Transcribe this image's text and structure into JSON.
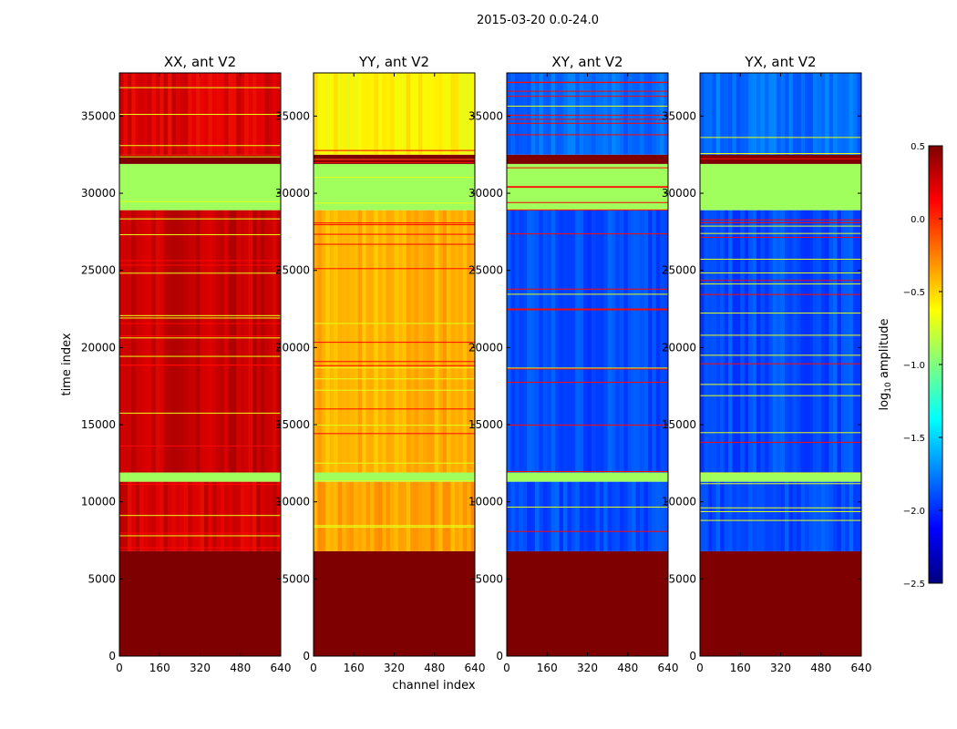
{
  "suptitle": "2015-03-20 0.0-24.0",
  "xlabel": "channel index",
  "ylabel": "time index",
  "x_ticks": [
    0,
    160,
    320,
    480,
    640
  ],
  "y_ticks": [
    0,
    5000,
    10000,
    15000,
    20000,
    25000,
    30000,
    35000
  ],
  "colorbar": {
    "label_prefix": "log",
    "label_sub": "10",
    "label_suffix": " amplitude",
    "ticks": [
      "0.5",
      "0.0",
      "−0.5",
      "−1.0",
      "−1.5",
      "−2.0",
      "−2.5"
    ],
    "tick_values": [
      0.5,
      0.0,
      -0.5,
      -1.0,
      -1.5,
      -2.0,
      -2.5
    ],
    "range": [
      -2.5,
      0.5
    ],
    "colormap": "jet",
    "stops": [
      "#00007f",
      "#0000ff",
      "#007fff",
      "#00ffff",
      "#7fff7f",
      "#ffff00",
      "#ff7f00",
      "#ff0000",
      "#7f0000"
    ]
  },
  "chart_data": [
    {
      "type": "heatmap",
      "title": "XX, ant V2",
      "xlim": [
        0,
        640
      ],
      "ylim": [
        0,
        37800
      ],
      "base_log_amplitude": 0.22,
      "flagged_row_value": -0.9,
      "bands": [
        {
          "y0": 0,
          "y1": 6800,
          "value": 0.5
        },
        {
          "y0": 6800,
          "y1": 11300,
          "value": 0.25
        },
        {
          "y0": 11300,
          "y1": 11900,
          "value": -0.9
        },
        {
          "y0": 11900,
          "y1": 28900,
          "value": 0.28
        },
        {
          "y0": 28900,
          "y1": 31900,
          "value": -0.9
        },
        {
          "y0": 31900,
          "y1": 32500,
          "value": 0.5
        },
        {
          "y0": 32500,
          "y1": 37800,
          "value": 0.22
        }
      ]
    },
    {
      "type": "heatmap",
      "title": "YY, ant V2",
      "xlim": [
        0,
        640
      ],
      "ylim": [
        0,
        37800
      ],
      "base_log_amplitude": -0.4,
      "flagged_row_value": -0.9,
      "bands": [
        {
          "y0": 0,
          "y1": 6800,
          "value": 0.5
        },
        {
          "y0": 6800,
          "y1": 11300,
          "value": -0.35
        },
        {
          "y0": 11300,
          "y1": 11900,
          "value": -0.9
        },
        {
          "y0": 11900,
          "y1": 28900,
          "value": -0.4
        },
        {
          "y0": 28900,
          "y1": 31900,
          "value": -0.9
        },
        {
          "y0": 31900,
          "y1": 32500,
          "value": 0.5
        },
        {
          "y0": 32500,
          "y1": 37800,
          "value": -0.6
        }
      ]
    },
    {
      "type": "heatmap",
      "title": "XY, ant V2",
      "xlim": [
        0,
        640
      ],
      "ylim": [
        0,
        37800
      ],
      "base_log_amplitude": -1.9,
      "flagged_row_value": -0.9,
      "bands": [
        {
          "y0": 0,
          "y1": 6800,
          "value": 0.5
        },
        {
          "y0": 6800,
          "y1": 11300,
          "value": -1.9
        },
        {
          "y0": 11300,
          "y1": 11900,
          "value": -0.9
        },
        {
          "y0": 11900,
          "y1": 28900,
          "value": -1.9
        },
        {
          "y0": 28900,
          "y1": 31900,
          "value": -0.9
        },
        {
          "y0": 31900,
          "y1": 32500,
          "value": 0.5
        },
        {
          "y0": 32500,
          "y1": 37800,
          "value": -1.8
        }
      ]
    },
    {
      "type": "heatmap",
      "title": "YX, ant V2",
      "xlim": [
        0,
        640
      ],
      "ylim": [
        0,
        37800
      ],
      "base_log_amplitude": -1.9,
      "flagged_row_value": -0.9,
      "bands": [
        {
          "y0": 0,
          "y1": 6800,
          "value": 0.5
        },
        {
          "y0": 6800,
          "y1": 11300,
          "value": -1.9
        },
        {
          "y0": 11300,
          "y1": 11900,
          "value": -0.9
        },
        {
          "y0": 11900,
          "y1": 28900,
          "value": -1.9
        },
        {
          "y0": 28900,
          "y1": 31900,
          "value": -0.9
        },
        {
          "y0": 31900,
          "y1": 32500,
          "value": 0.5
        },
        {
          "y0": 32500,
          "y1": 37800,
          "value": -1.8
        }
      ]
    }
  ]
}
